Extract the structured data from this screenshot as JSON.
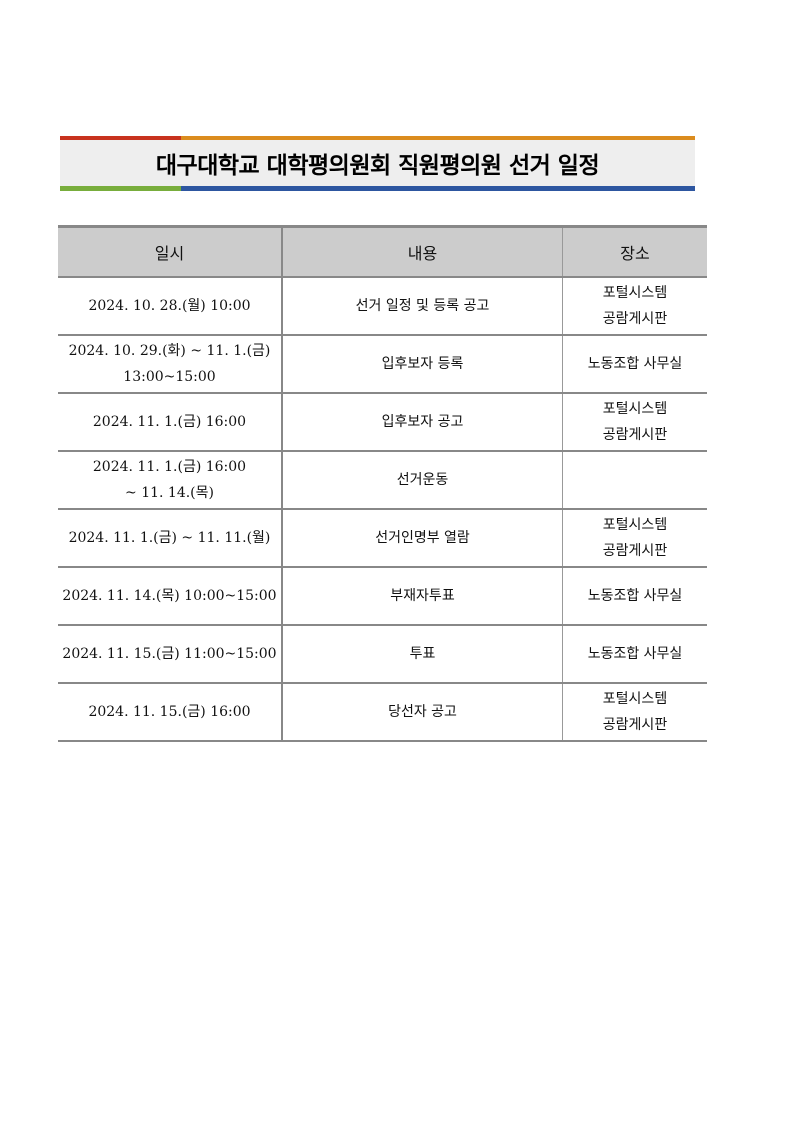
{
  "title": "대구대학교 대학평의원회 직원평의원 선거 일정",
  "colors": {
    "top_left": "#c8321e",
    "top_right": "#db8c1e",
    "bottom_left": "#78ad3c",
    "bottom_right": "#2d56a0",
    "header_bg": "#cccccc",
    "title_bg": "#eeeeee"
  },
  "table": {
    "headers": [
      "일시",
      "내용",
      "장소"
    ],
    "rows": [
      {
        "date": [
          "2024. 10. 28.(월) 10:00"
        ],
        "content": "선거 일정 및 등록 공고",
        "place": [
          "포털시스템",
          "공람게시판"
        ]
      },
      {
        "date": [
          "2024. 10. 29.(화) ~ 11. 1.(금)",
          "13:00~15:00"
        ],
        "content": "입후보자 등록",
        "place": [
          "노동조합 사무실"
        ]
      },
      {
        "date": [
          "2024. 11. 1.(금) 16:00"
        ],
        "content": "입후보자 공고",
        "place": [
          "포털시스템",
          "공람게시판"
        ]
      },
      {
        "date": [
          "2024. 11. 1.(금) 16:00",
          "~ 11. 14.(목)"
        ],
        "content": "선거운동",
        "place": []
      },
      {
        "date": [
          "2024. 11. 1.(금) ~ 11. 11.(월)"
        ],
        "content": "선거인명부 열람",
        "place": [
          "포털시스템",
          "공람게시판"
        ]
      },
      {
        "date": [
          "2024. 11. 14.(목) 10:00~15:00"
        ],
        "content": "부재자투표",
        "place": [
          "노동조합 사무실"
        ]
      },
      {
        "date": [
          "2024. 11. 15.(금) 11:00~15:00"
        ],
        "content": "투표",
        "place": [
          "노동조합 사무실"
        ]
      },
      {
        "date": [
          "2024. 11. 15.(금) 16:00"
        ],
        "content": "당선자 공고",
        "place": [
          "포털시스템",
          "공람게시판"
        ]
      }
    ]
  }
}
